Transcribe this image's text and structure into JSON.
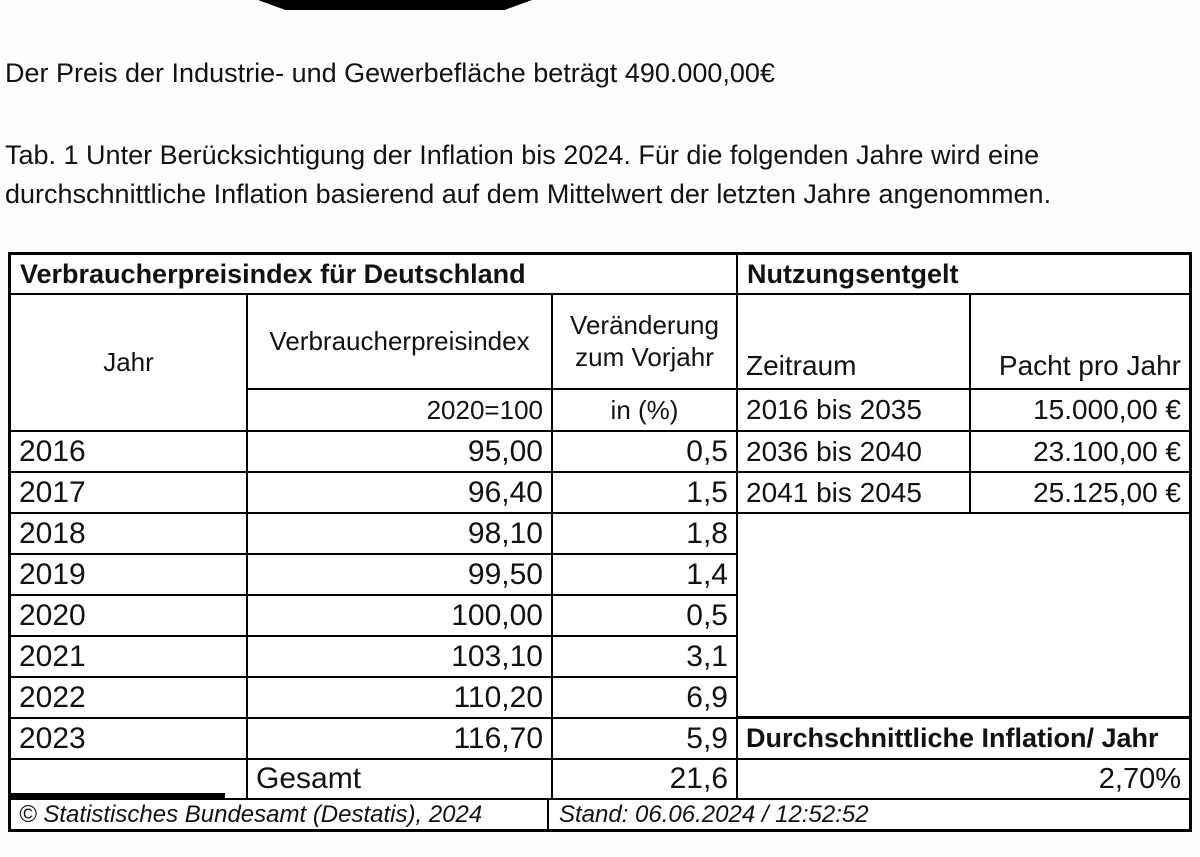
{
  "page": {
    "intro": "Der Preis der Industrie- und Gewerbefläche beträgt 490.000,00€",
    "caption_line1": "Tab. 1 Unter Berücksichtigung der Inflation bis 2024. Für die folgenden Jahre wird eine",
    "caption_line2": "durchschnittliche Inflation basierend auf dem Mittelwert der letzten Jahre angenommen."
  },
  "cpi_table": {
    "title": "Verbraucherpreisindex für Deutschland",
    "col_year": "Jahr",
    "col_index": "Verbraucherpreisindex",
    "col_change_line1": "Veränderung",
    "col_change_line2": "zum Vorjahr",
    "sub_index": "2020=100",
    "sub_change": "in (%)",
    "rows": [
      {
        "year": "2016",
        "index": "95,00",
        "change": "0,5"
      },
      {
        "year": "2017",
        "index": "96,40",
        "change": "1,5"
      },
      {
        "year": "2018",
        "index": "98,10",
        "change": "1,8"
      },
      {
        "year": "2019",
        "index": "99,50",
        "change": "1,4"
      },
      {
        "year": "2020",
        "index": "100,00",
        "change": "0,5"
      },
      {
        "year": "2021",
        "index": "103,10",
        "change": "3,1"
      },
      {
        "year": "2022",
        "index": "110,20",
        "change": "6,9"
      },
      {
        "year": "2023",
        "index": "116,70",
        "change": "5,9"
      }
    ],
    "total_label": "Gesamt",
    "total_change": "21,6"
  },
  "fee_table": {
    "title": "Nutzungsentgelt",
    "col_period": "Zeitraum",
    "col_rent": "Pacht pro Jahr",
    "rows": [
      {
        "period": "2016 bis 2035",
        "rent": "15.000,00 €"
      },
      {
        "period": "2036 bis 2040",
        "rent": "23.100,00 €"
      },
      {
        "period": "2041 bis 2045",
        "rent": "25.125,00 €"
      }
    ],
    "avg_inflation_label": "Durchschnittliche Inflation/ Jahr",
    "avg_inflation_value": "2,70%"
  },
  "footer": {
    "source": "© Statistisches Bundesamt (Destatis), 2024",
    "stand": "Stand: 06.06.2024 / 12:52:52"
  }
}
